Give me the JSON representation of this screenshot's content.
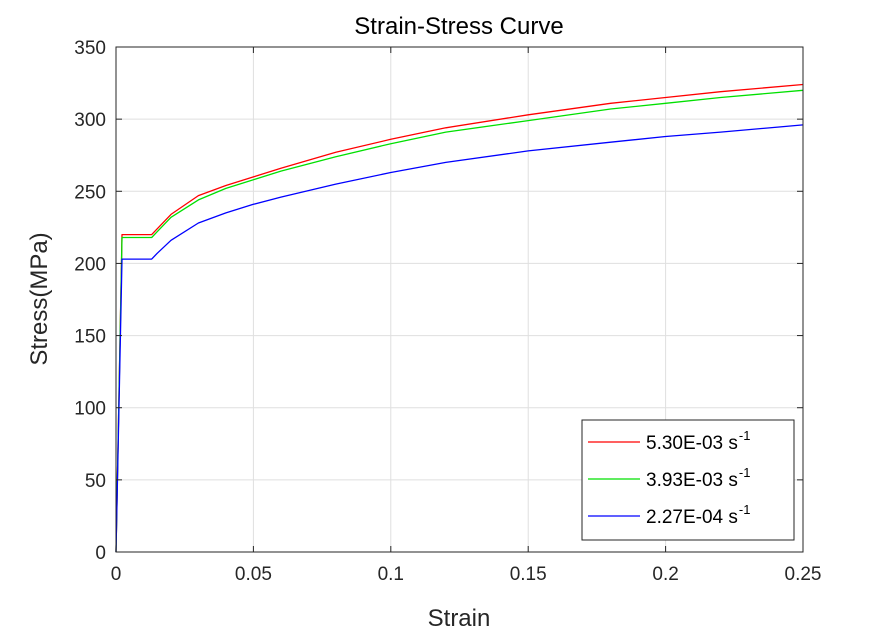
{
  "chart_data": {
    "type": "line",
    "title": "Strain-Stress Curve",
    "xlabel": "Strain",
    "ylabel": "Stress(MPa)",
    "xlim": [
      0,
      0.25
    ],
    "ylim": [
      0,
      350
    ],
    "xticks": [
      0,
      0.05,
      0.1,
      0.15,
      0.2,
      0.25
    ],
    "xtick_labels": [
      "0",
      "0.05",
      "0.1",
      "0.15",
      "0.2",
      "0.25"
    ],
    "yticks": [
      0,
      50,
      100,
      150,
      200,
      250,
      300,
      350
    ],
    "ytick_labels": [
      "0",
      "50",
      "100",
      "150",
      "200",
      "250",
      "300",
      "350"
    ],
    "grid": true,
    "legend_position": "bottom-right",
    "series": [
      {
        "name": "5.30E-03 s",
        "name_sup": "-1",
        "color": "#ff0000",
        "x": [
          0,
          0.0022,
          0.013,
          0.015,
          0.02,
          0.03,
          0.04,
          0.05,
          0.06,
          0.08,
          0.1,
          0.12,
          0.15,
          0.18,
          0.2,
          0.22,
          0.25
        ],
        "y": [
          0,
          220,
          220,
          224,
          234,
          247,
          254,
          260,
          266,
          277,
          286,
          294,
          303,
          311,
          315,
          319,
          324
        ]
      },
      {
        "name": "3.93E-03 s",
        "name_sup": "-1",
        "color": "#00e000",
        "x": [
          0,
          0.0022,
          0.013,
          0.015,
          0.02,
          0.03,
          0.04,
          0.05,
          0.06,
          0.08,
          0.1,
          0.12,
          0.15,
          0.18,
          0.2,
          0.22,
          0.25
        ],
        "y": [
          0,
          218,
          218,
          222,
          232,
          244,
          252,
          258,
          264,
          274,
          283,
          291,
          299,
          307,
          311,
          315,
          320
        ]
      },
      {
        "name": "2.27E-04 s",
        "name_sup": "-1",
        "color": "#0000ff",
        "x": [
          0,
          0.0022,
          0.013,
          0.015,
          0.02,
          0.03,
          0.04,
          0.05,
          0.06,
          0.08,
          0.1,
          0.12,
          0.15,
          0.18,
          0.2,
          0.22,
          0.25
        ],
        "y": [
          0,
          203,
          203,
          207,
          216,
          228,
          235,
          241,
          246,
          255,
          263,
          270,
          278,
          284,
          288,
          291,
          296
        ]
      }
    ]
  }
}
